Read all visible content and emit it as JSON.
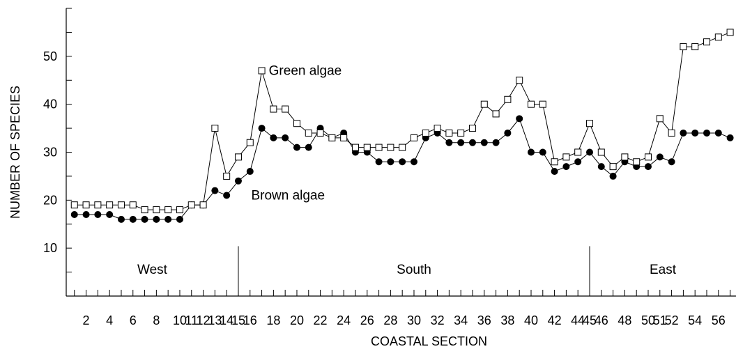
{
  "chart_data": {
    "type": "line",
    "title": "",
    "xlabel": "COASTAL SECTION",
    "ylabel": "NUMBER OF SPECIES",
    "xlim": [
      0.3,
      57.5
    ],
    "ylim": [
      0,
      60
    ],
    "yticks": [
      10,
      20,
      30,
      40,
      50
    ],
    "x_tick_labels": [
      2,
      4,
      6,
      8,
      10,
      11,
      12,
      13,
      14,
      15,
      16,
      18,
      20,
      22,
      24,
      26,
      28,
      30,
      32,
      34,
      36,
      38,
      40,
      42,
      44,
      45,
      46,
      48,
      50,
      51,
      52,
      54,
      56
    ],
    "regions": [
      {
        "label": "West",
        "from": 0.3,
        "to": 15
      },
      {
        "label": "South",
        "from": 15,
        "to": 45
      },
      {
        "label": "East",
        "from": 45,
        "to": 57.5
      }
    ],
    "x": [
      1,
      2,
      3,
      4,
      5,
      6,
      7,
      8,
      9,
      10,
      11,
      12,
      13,
      14,
      15,
      16,
      17,
      18,
      19,
      20,
      21,
      22,
      23,
      24,
      25,
      26,
      27,
      28,
      29,
      30,
      31,
      32,
      33,
      34,
      35,
      36,
      37,
      38,
      39,
      40,
      41,
      42,
      43,
      44,
      45,
      46,
      47,
      48,
      49,
      50,
      51,
      52,
      53,
      54,
      55,
      56,
      57
    ],
    "series": [
      {
        "name": "Green algae",
        "marker": "open-square",
        "label_at_x": 17.6,
        "label_at_y": 47,
        "values": [
          19,
          19,
          19,
          19,
          19,
          19,
          18,
          18,
          18,
          18,
          19,
          19,
          35,
          25,
          29,
          32,
          47,
          39,
          39,
          36,
          34,
          34,
          33,
          33,
          31,
          31,
          31,
          31,
          31,
          33,
          34,
          35,
          34,
          34,
          35,
          40,
          38,
          41,
          45,
          40,
          40,
          28,
          29,
          30,
          36,
          30,
          27,
          29,
          28,
          29,
          37,
          34,
          52,
          52,
          53,
          54,
          55
        ]
      },
      {
        "name": "Brown algae",
        "marker": "filled-circle",
        "label_at_x": 16.1,
        "label_at_y": 21,
        "values": [
          17,
          17,
          17,
          17,
          16,
          16,
          16,
          16,
          16,
          16,
          19,
          19,
          22,
          21,
          24,
          26,
          35,
          33,
          33,
          31,
          31,
          35,
          33,
          34,
          30,
          30,
          28,
          28,
          28,
          28,
          33,
          34,
          32,
          32,
          32,
          32,
          32,
          34,
          37,
          30,
          30,
          26,
          27,
          28,
          30,
          27,
          25,
          28,
          27,
          27,
          29,
          28,
          34,
          34,
          34,
          34,
          33
        ]
      }
    ],
    "colors": {
      "axis": "#000000",
      "marker_fill": "#000000",
      "open_marker_fill": "#ffffff"
    }
  }
}
